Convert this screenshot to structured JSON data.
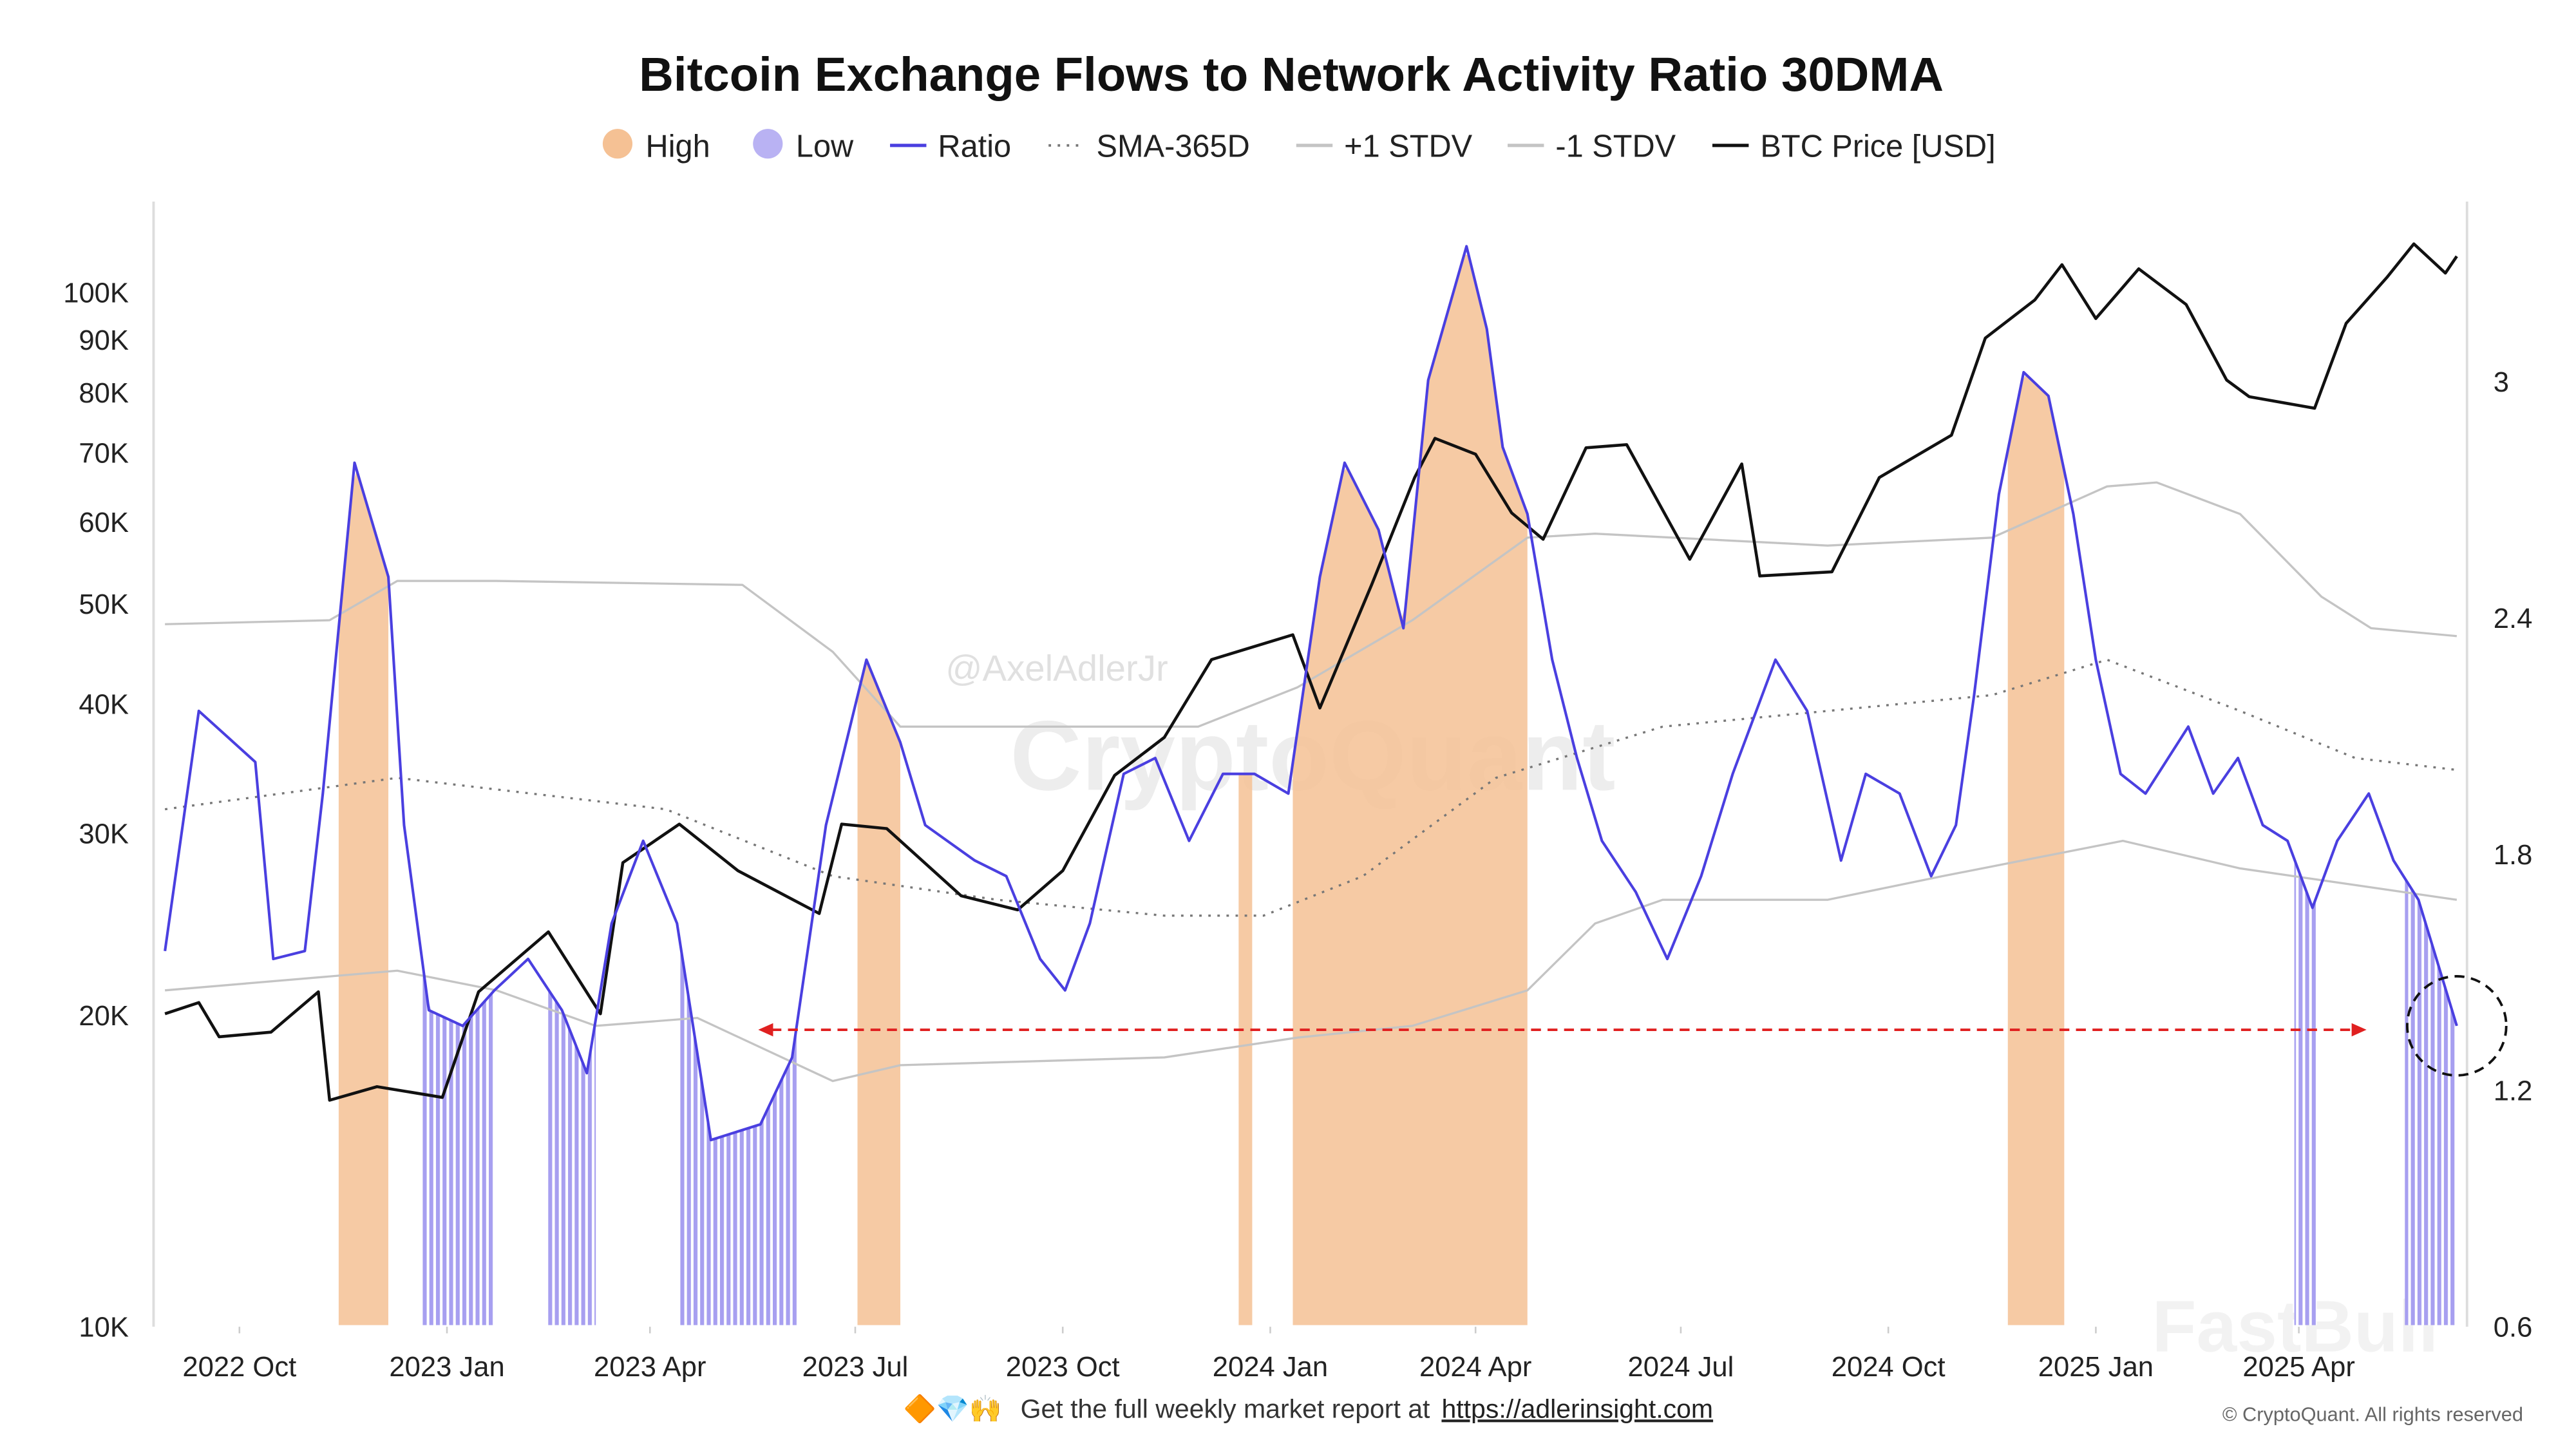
{
  "chart_data": {
    "type": "line",
    "title": "Bitcoin Exchange Flows to Network Activity Ratio 30DMA",
    "legend": [
      {
        "name": "High",
        "color": "#f5c194",
        "marker": "dot"
      },
      {
        "name": "Low",
        "color": "#b9b2f3",
        "marker": "dot"
      },
      {
        "name": "Ratio",
        "color": "#4a3fe0",
        "marker": "line"
      },
      {
        "name": "SMA-365D",
        "color": "#777777",
        "marker": "dotted"
      },
      {
        "name": "+1 STDV",
        "color": "#c4c4c4",
        "marker": "line"
      },
      {
        "name": "-1 STDV",
        "color": "#c4c4c4",
        "marker": "line"
      },
      {
        "name": "BTC Price [USD]",
        "color": "#111111",
        "marker": "line"
      }
    ],
    "legend_placement": "top-center",
    "x_ticks": [
      "2022 Oct",
      "2023 Jan",
      "2023 Apr",
      "2023 Jul",
      "2023 Oct",
      "2024 Jan",
      "2024 Apr",
      "2024 Jul",
      "2024 Oct",
      "2025 Jan",
      "2025 Apr"
    ],
    "x_tick_dates": [
      "2022-10-01",
      "2023-01-01",
      "2023-04-01",
      "2023-07-01",
      "2023-10-01",
      "2024-01-01",
      "2024-04-01",
      "2024-07-01",
      "2024-10-01",
      "2025-01-01",
      "2025-04-01"
    ],
    "xlim": [
      "2022-08-29",
      "2025-06-10"
    ],
    "y_left": {
      "scale": "log",
      "range": [
        10000,
        130000
      ],
      "ticks": [
        10000,
        20000,
        30000,
        40000,
        50000,
        60000,
        70000,
        80000,
        90000,
        100000
      ],
      "tick_labels": [
        "10K",
        "20K",
        "30K",
        "40K",
        "50K",
        "60K",
        "70K",
        "80K",
        "90K",
        "100K"
      ]
    },
    "y_right": {
      "scale": "linear",
      "range": [
        0.6,
        3.4
      ],
      "ticks": [
        0.6,
        1.2,
        1.8,
        2.4,
        3
      ],
      "tick_labels": [
        "0.6",
        "1.2",
        "1.8",
        "2.4",
        "3"
      ]
    },
    "grid": false,
    "series": [
      {
        "name": "Ratio",
        "axis": "right",
        "color": "#4a3fe0",
        "points": [
          [
            "2022-08-29",
            1.55
          ],
          [
            "2022-09-13",
            2.16
          ],
          [
            "2022-10-08",
            2.03
          ],
          [
            "2022-10-16",
            1.53
          ],
          [
            "2022-10-30",
            1.55
          ],
          [
            "2022-11-07",
            1.95
          ],
          [
            "2022-11-21",
            2.79
          ],
          [
            "2022-12-06",
            2.5
          ],
          [
            "2022-12-13",
            1.87
          ],
          [
            "2022-12-24",
            1.4
          ],
          [
            "2023-01-08",
            1.36
          ],
          [
            "2023-01-22",
            1.45
          ],
          [
            "2023-02-06",
            1.53
          ],
          [
            "2023-02-21",
            1.4
          ],
          [
            "2023-03-04",
            1.24
          ],
          [
            "2023-03-15",
            1.62
          ],
          [
            "2023-03-29",
            1.83
          ],
          [
            "2023-04-13",
            1.62
          ],
          [
            "2023-04-28",
            1.07
          ],
          [
            "2023-05-20",
            1.11
          ],
          [
            "2023-06-03",
            1.28
          ],
          [
            "2023-06-18",
            1.87
          ],
          [
            "2023-07-06",
            2.29
          ],
          [
            "2023-07-21",
            2.08
          ],
          [
            "2023-08-01",
            1.87
          ],
          [
            "2023-08-23",
            1.78
          ],
          [
            "2023-09-06",
            1.74
          ],
          [
            "2023-09-21",
            1.53
          ],
          [
            "2023-10-02",
            1.45
          ],
          [
            "2023-10-13",
            1.62
          ],
          [
            "2023-10-28",
            2.0
          ],
          [
            "2023-11-11",
            2.04
          ],
          [
            "2023-11-26",
            1.83
          ],
          [
            "2023-12-11",
            2.0
          ],
          [
            "2023-12-25",
            2.0
          ],
          [
            "2024-01-09",
            1.95
          ],
          [
            "2024-01-23",
            2.5
          ],
          [
            "2024-02-03",
            2.79
          ],
          [
            "2024-02-18",
            2.62
          ],
          [
            "2024-02-29",
            2.37
          ],
          [
            "2024-03-11",
            3.0
          ],
          [
            "2024-03-28",
            3.34
          ],
          [
            "2024-04-06",
            3.13
          ],
          [
            "2024-04-13",
            2.83
          ],
          [
            "2024-04-24",
            2.66
          ],
          [
            "2024-05-05",
            2.29
          ],
          [
            "2024-05-16",
            2.04
          ],
          [
            "2024-05-27",
            1.83
          ],
          [
            "2024-06-11",
            1.7
          ],
          [
            "2024-06-25",
            1.53
          ],
          [
            "2024-07-10",
            1.74
          ],
          [
            "2024-07-24",
            2.0
          ],
          [
            "2024-08-12",
            2.29
          ],
          [
            "2024-08-26",
            2.16
          ],
          [
            "2024-09-10",
            1.78
          ],
          [
            "2024-09-21",
            2.0
          ],
          [
            "2024-10-06",
            1.95
          ],
          [
            "2024-10-20",
            1.74
          ],
          [
            "2024-10-31",
            1.87
          ],
          [
            "2024-11-08",
            2.2
          ],
          [
            "2024-11-19",
            2.71
          ],
          [
            "2024-11-30",
            3.02
          ],
          [
            "2024-12-11",
            2.96
          ],
          [
            "2024-12-22",
            2.66
          ],
          [
            "2025-01-01",
            2.29
          ],
          [
            "2025-01-12",
            2.0
          ],
          [
            "2025-01-23",
            1.95
          ],
          [
            "2025-02-11",
            2.12
          ],
          [
            "2025-02-22",
            1.95
          ],
          [
            "2025-03-05",
            2.04
          ],
          [
            "2025-03-16",
            1.87
          ],
          [
            "2025-03-27",
            1.83
          ],
          [
            "2025-04-07",
            1.66
          ],
          [
            "2025-04-18",
            1.83
          ],
          [
            "2025-05-02",
            1.95
          ],
          [
            "2025-05-13",
            1.78
          ],
          [
            "2025-05-24",
            1.68
          ],
          [
            "2025-06-01",
            1.53
          ],
          [
            "2025-06-10",
            1.36
          ]
        ]
      },
      {
        "name": "SMA-365D",
        "axis": "right",
        "color": "#777777",
        "points": [
          [
            "2022-08-29",
            1.91
          ],
          [
            "2022-12-10",
            1.99
          ],
          [
            "2023-04-08",
            1.91
          ],
          [
            "2023-06-21",
            1.74
          ],
          [
            "2023-09-02",
            1.68
          ],
          [
            "2023-11-15",
            1.64
          ],
          [
            "2023-12-29",
            1.64
          ],
          [
            "2024-02-11",
            1.74
          ],
          [
            "2024-04-10",
            1.99
          ],
          [
            "2024-06-23",
            2.12
          ],
          [
            "2024-09-04",
            2.16
          ],
          [
            "2024-11-16",
            2.2
          ],
          [
            "2025-01-06",
            2.29
          ],
          [
            "2025-03-06",
            2.16
          ],
          [
            "2025-04-26",
            2.04
          ],
          [
            "2025-06-10",
            2.01
          ]
        ]
      },
      {
        "name": "+1 STDV",
        "axis": "right",
        "color": "#c4c4c4",
        "points": [
          [
            "2022-08-29",
            2.38
          ],
          [
            "2022-11-10",
            2.39
          ],
          [
            "2022-12-10",
            2.49
          ],
          [
            "2023-01-23",
            2.49
          ],
          [
            "2023-05-12",
            2.48
          ],
          [
            "2023-06-21",
            2.31
          ],
          [
            "2023-07-21",
            2.12
          ],
          [
            "2023-10-09",
            2.12
          ],
          [
            "2023-11-30",
            2.12
          ],
          [
            "2024-01-13",
            2.22
          ],
          [
            "2024-03-04",
            2.39
          ],
          [
            "2024-04-24",
            2.6
          ],
          [
            "2024-05-24",
            2.61
          ],
          [
            "2024-09-04",
            2.58
          ],
          [
            "2024-11-16",
            2.6
          ],
          [
            "2025-01-06",
            2.73
          ],
          [
            "2025-01-28",
            2.74
          ],
          [
            "2025-03-06",
            2.66
          ],
          [
            "2025-04-11",
            2.45
          ],
          [
            "2025-05-03",
            2.37
          ],
          [
            "2025-06-10",
            2.35
          ]
        ]
      },
      {
        "name": "-1 STDV",
        "axis": "right",
        "color": "#c4c4c4",
        "points": [
          [
            "2022-08-29",
            1.45
          ],
          [
            "2022-12-10",
            1.5
          ],
          [
            "2023-01-23",
            1.45
          ],
          [
            "2023-03-08",
            1.36
          ],
          [
            "2023-04-22",
            1.38
          ],
          [
            "2023-06-21",
            1.22
          ],
          [
            "2023-07-21",
            1.26
          ],
          [
            "2023-11-15",
            1.28
          ],
          [
            "2024-01-13",
            1.33
          ],
          [
            "2024-03-04",
            1.36
          ],
          [
            "2024-04-24",
            1.45
          ],
          [
            "2024-05-24",
            1.62
          ],
          [
            "2024-06-23",
            1.68
          ],
          [
            "2024-09-04",
            1.68
          ],
          [
            "2024-10-25",
            1.74
          ],
          [
            "2025-01-13",
            1.83
          ],
          [
            "2025-03-06",
            1.76
          ],
          [
            "2025-06-10",
            1.68
          ]
        ]
      },
      {
        "name": "BTC Price [USD]",
        "axis": "left",
        "color": "#111111",
        "points": [
          [
            "2022-08-29",
            20000
          ],
          [
            "2022-09-13",
            20500
          ],
          [
            "2022-09-22",
            19000
          ],
          [
            "2022-10-15",
            19200
          ],
          [
            "2022-11-05",
            21000
          ],
          [
            "2022-11-10",
            16500
          ],
          [
            "2022-12-01",
            17000
          ],
          [
            "2022-12-30",
            16600
          ],
          [
            "2023-01-15",
            21000
          ],
          [
            "2023-02-15",
            24000
          ],
          [
            "2023-03-10",
            20000
          ],
          [
            "2023-03-20",
            28000
          ],
          [
            "2023-04-14",
            30500
          ],
          [
            "2023-05-10",
            27500
          ],
          [
            "2023-06-15",
            25000
          ],
          [
            "2023-06-25",
            30500
          ],
          [
            "2023-07-15",
            30200
          ],
          [
            "2023-08-17",
            26000
          ],
          [
            "2023-09-11",
            25200
          ],
          [
            "2023-10-01",
            27500
          ],
          [
            "2023-10-24",
            34000
          ],
          [
            "2023-11-15",
            37000
          ],
          [
            "2023-12-06",
            44000
          ],
          [
            "2024-01-11",
            46500
          ],
          [
            "2024-01-23",
            39500
          ],
          [
            "2024-02-15",
            52000
          ],
          [
            "2024-03-05",
            66000
          ],
          [
            "2024-03-14",
            72000
          ],
          [
            "2024-04-01",
            69500
          ],
          [
            "2024-04-17",
            61000
          ],
          [
            "2024-05-01",
            57500
          ],
          [
            "2024-05-20",
            70500
          ],
          [
            "2024-06-07",
            71000
          ],
          [
            "2024-07-05",
            55000
          ],
          [
            "2024-07-28",
            68000
          ],
          [
            "2024-08-05",
            53000
          ],
          [
            "2024-09-06",
            53500
          ],
          [
            "2024-09-27",
            66000
          ],
          [
            "2024-10-29",
            72500
          ],
          [
            "2024-11-13",
            90000
          ],
          [
            "2024-12-05",
            98000
          ],
          [
            "2024-12-17",
            106000
          ],
          [
            "2025-01-01",
            94000
          ],
          [
            "2025-01-20",
            105000
          ],
          [
            "2025-02-10",
            97000
          ],
          [
            "2025-02-28",
            82000
          ],
          [
            "2025-03-10",
            79000
          ],
          [
            "2025-04-08",
            77000
          ],
          [
            "2025-04-22",
            93000
          ],
          [
            "2025-05-10",
            103000
          ],
          [
            "2025-05-22",
            111000
          ],
          [
            "2025-06-05",
            104000
          ],
          [
            "2025-06-10",
            108000
          ]
        ]
      }
    ],
    "high_periods": [
      [
        "2022-11-14",
        "2022-12-06"
      ],
      [
        "2023-07-02",
        "2023-07-21"
      ],
      [
        "2023-12-18",
        "2023-12-24"
      ],
      [
        "2024-01-11",
        "2024-04-24"
      ],
      [
        "2024-11-23",
        "2024-12-18"
      ]
    ],
    "low_periods": [
      [
        "2022-12-21",
        "2023-01-22"
      ],
      [
        "2023-02-14",
        "2023-03-08"
      ],
      [
        "2023-04-14",
        "2023-06-06"
      ],
      [
        "2025-03-30",
        "2025-04-09"
      ],
      [
        "2025-05-18",
        "2025-06-10"
      ]
    ],
    "annotations": {
      "reference_line": {
        "value": 1.35,
        "from": "2023-05-19",
        "to": "2025-05-01",
        "color": "#e02020",
        "style": "dashed-arrow"
      },
      "highlight_circle": {
        "date": "2025-06-10",
        "value": 1.36
      }
    }
  },
  "watermarks": {
    "author": "@AxelAdlerJr",
    "brand": "CryptoQuant",
    "corner": "FastBull"
  },
  "footer": {
    "emoji": "🔶💎🙌",
    "text": "Get the full weekly market report at",
    "link": "https://adlerinsight.com",
    "copyright": "© CryptoQuant. All rights reserved"
  }
}
